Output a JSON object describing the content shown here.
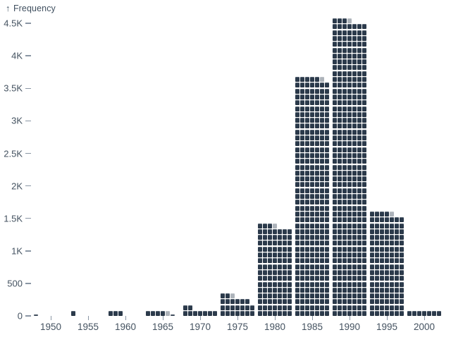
{
  "chart_data": {
    "type": "bar",
    "subtype": "waffle-histogram",
    "title": "",
    "ylabel": "Frequency",
    "ylabel_arrow": "↑",
    "xlabel": "",
    "ylim": [
      0,
      4500
    ],
    "grid": false,
    "legend": "none",
    "y_tick_labels": [
      "0",
      "500",
      "1K",
      "1.5K",
      "2K",
      "2.5K",
      "3K",
      "3.5K",
      "4K",
      "4.5K"
    ],
    "y_tick_values": [
      0,
      500,
      1000,
      1500,
      2000,
      2500,
      3000,
      3500,
      4000,
      4500
    ],
    "x_tick_labels": [
      "1950",
      "1955",
      "1960",
      "1965",
      "1970",
      "1975",
      "1980",
      "1985",
      "1990",
      "1995",
      "2000"
    ],
    "categories": [
      1950,
      1955,
      1960,
      1965,
      1970,
      1975,
      1980,
      1985,
      1990,
      1995,
      2000
    ],
    "values": [
      5,
      15,
      40,
      60,
      115,
      290,
      1395,
      3670,
      4545,
      1590,
      90
    ],
    "bins": [
      {
        "year": 1950,
        "value": 5,
        "full_rows": 0,
        "extra_rows": [
          [
            0.15
          ]
        ]
      },
      {
        "year": 1955,
        "value": 15,
        "full_rows": 0,
        "extra_rows": [
          [
            1
          ]
        ]
      },
      {
        "year": 1960,
        "value": 40,
        "full_rows": 0,
        "extra_rows": [
          [
            1,
            1,
            1
          ]
        ]
      },
      {
        "year": 1965,
        "value": 60,
        "full_rows": 0,
        "extra_rows": [
          [
            1,
            1,
            1,
            1,
            0.5,
            0.15
          ]
        ]
      },
      {
        "year": 1970,
        "value": 115,
        "full_rows": 1,
        "extra_rows": [
          [
            1,
            1
          ]
        ]
      },
      {
        "year": 1975,
        "value": 290,
        "full_rows": 2,
        "extra_rows": [
          [
            1,
            1,
            1,
            1,
            1,
            1
          ],
          [
            1,
            1,
            0.5
          ]
        ]
      },
      {
        "year": 1980,
        "value": 1395,
        "full_rows": 15,
        "extra_rows": [
          [
            1,
            1,
            1,
            0.5
          ]
        ]
      },
      {
        "year": 1985,
        "value": 3670,
        "full_rows": 40,
        "extra_rows": [
          [
            1,
            1,
            1,
            1,
            1,
            0.5
          ]
        ]
      },
      {
        "year": 1990,
        "value": 4545,
        "full_rows": 50,
        "extra_rows": [
          [
            1,
            1,
            1,
            0.5
          ]
        ]
      },
      {
        "year": 1995,
        "value": 1590,
        "full_rows": 17,
        "extra_rows": [
          [
            1,
            1,
            1,
            1,
            0.5
          ]
        ]
      },
      {
        "year": 2000,
        "value": 90,
        "full_rows": 1,
        "extra_rows": []
      }
    ],
    "colors": {
      "cell": "#2b3a4b",
      "axis_text": "#445260",
      "tick_mark": "#8a96a4",
      "background": "#ffffff"
    }
  }
}
